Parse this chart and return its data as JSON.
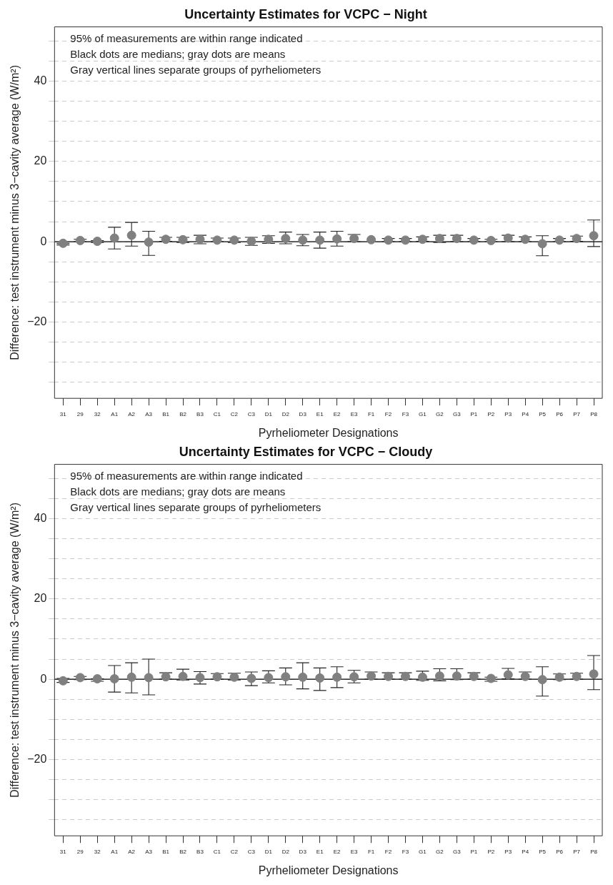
{
  "chart_data": [
    {
      "type": "scatter",
      "title": "Uncertainty Estimates for VCPC − Night",
      "xlabel": "Pyrheliometer Designations",
      "ylabel": "Difference: test instrument minus 3−cavity average (W/m²)",
      "annotations": [
        "95% of measurements are within range indicated",
        "Black dots are medians; gray dots are means",
        "Gray vertical lines separate groups of pyrheliometers"
      ],
      "categories": [
        "31",
        "29",
        "32",
        "A1",
        "A2",
        "A3",
        "B1",
        "B2",
        "B3",
        "C1",
        "C2",
        "C3",
        "D1",
        "D2",
        "D3",
        "E1",
        "E2",
        "E3",
        "F1",
        "F2",
        "F3",
        "G1",
        "G2",
        "G3",
        "P1",
        "P2",
        "P3",
        "P4",
        "P5",
        "P6",
        "P7",
        "P8"
      ],
      "ylim": [
        -39,
        53.5
      ],
      "yticks": [
        {
          "value": -35,
          "label": null
        },
        {
          "value": -30,
          "label": null
        },
        {
          "value": -25,
          "label": null
        },
        {
          "value": -20,
          "label": "−20"
        },
        {
          "value": -15,
          "label": null
        },
        {
          "value": -10,
          "label": null
        },
        {
          "value": -5,
          "label": null
        },
        0,
        {
          "value": 5,
          "label": null
        },
        {
          "value": 10,
          "label": null
        },
        {
          "value": 15,
          "label": null
        },
        20,
        {
          "value": 25,
          "label": null
        },
        {
          "value": 30,
          "label": null
        },
        {
          "value": 35,
          "label": null
        },
        40,
        {
          "value": 45,
          "label": null
        },
        {
          "value": 50,
          "label": null
        }
      ],
      "grid": "y",
      "marker": "circle",
      "series": [
        {
          "color": "#808080",
          "values": [
            -0.4,
            0.3,
            0.1,
            0.9,
            1.6,
            -0.1,
            0.6,
            0.5,
            0.6,
            0.4,
            0.4,
            0.1,
            0.6,
            0.8,
            0.4,
            0.4,
            0.7,
            0.8,
            0.5,
            0.4,
            0.4,
            0.6,
            0.8,
            0.8,
            0.4,
            0.3,
            0.9,
            0.6,
            -0.5,
            0.4,
            0.8,
            1.5
          ],
          "errors": [
            [
              -0.8,
              -0.4
            ],
            [
              0,
              0.6
            ],
            [
              -0.2,
              0.3
            ],
            [
              -1.8,
              3.6
            ],
            [
              -1.1,
              4.8
            ],
            [
              -3.4,
              2.6
            ],
            [
              0.1,
              1.1
            ],
            [
              -0.2,
              1.1
            ],
            [
              -0.5,
              1.6
            ],
            [
              0,
              0.9
            ],
            [
              -0.2,
              0.9
            ],
            [
              -0.9,
              1.1
            ],
            [
              -0.4,
              1.5
            ],
            [
              -0.5,
              2.4
            ],
            [
              -1,
              1.8
            ],
            [
              -1.6,
              2.4
            ],
            [
              -1.1,
              2.6
            ],
            [
              0,
              1.8
            ],
            null,
            [
              0,
              0.8
            ],
            [
              0,
              0.8
            ],
            [
              0.1,
              1.2
            ],
            [
              -0.2,
              1.6
            ],
            [
              0,
              1.6
            ],
            [
              0,
              0.8
            ],
            [
              0,
              0.6
            ],
            [
              0,
              1.6
            ],
            [
              0,
              1.2
            ],
            [
              -3.5,
              1.5
            ],
            [
              0,
              0.8
            ],
            [
              0.1,
              1.4
            ],
            [
              -1.2,
              5.4
            ]
          ]
        }
      ],
      "ref_lines": [
        {
          "axis": "y",
          "value": 0,
          "color": "#000000"
        }
      ]
    },
    {
      "type": "scatter",
      "title": "Uncertainty Estimates for VCPC − Cloudy",
      "xlabel": "Pyrheliometer Designations",
      "ylabel": "Difference: test instrument minus 3−cavity average (W/m²)",
      "annotations": [
        "95% of measurements are within range indicated",
        "Black dots are medians; gray dots are means",
        "Gray vertical lines separate groups of pyrheliometers"
      ],
      "categories": [
        "31",
        "29",
        "32",
        "A1",
        "A2",
        "A3",
        "B1",
        "B2",
        "B3",
        "C1",
        "C2",
        "C3",
        "D1",
        "D2",
        "D3",
        "E1",
        "E2",
        "E3",
        "F1",
        "F2",
        "F3",
        "G1",
        "G2",
        "G3",
        "P1",
        "P2",
        "P3",
        "P4",
        "P5",
        "P6",
        "P7",
        "P8"
      ],
      "ylim": [
        -39,
        53.5
      ],
      "yticks": [
        {
          "value": -35,
          "label": null
        },
        {
          "value": -30,
          "label": null
        },
        {
          "value": -25,
          "label": null
        },
        {
          "value": -20,
          "label": "−20"
        },
        {
          "value": -15,
          "label": null
        },
        {
          "value": -10,
          "label": null
        },
        {
          "value": -5,
          "label": null
        },
        0,
        {
          "value": 5,
          "label": null
        },
        {
          "value": 10,
          "label": null
        },
        {
          "value": 15,
          "label": null
        },
        20,
        {
          "value": 25,
          "label": null
        },
        {
          "value": 30,
          "label": null
        },
        {
          "value": 35,
          "label": null
        },
        40,
        {
          "value": 45,
          "label": null
        },
        {
          "value": 50,
          "label": null
        }
      ],
      "grid": "y",
      "marker": "circle",
      "series": [
        {
          "color": "#808080",
          "values": [
            -0.4,
            0.4,
            0.1,
            0.1,
            0.5,
            0.4,
            0.6,
            0.7,
            0.4,
            0.6,
            0.5,
            0.2,
            0.4,
            0.6,
            0.5,
            0.3,
            0.5,
            0.6,
            0.8,
            0.7,
            0.7,
            0.5,
            0.8,
            0.8,
            0.7,
            0.2,
            1.1,
            0.7,
            -0.1,
            0.5,
            0.7,
            1.3
          ],
          "errors": [
            [
              -0.8,
              0.2
            ],
            [
              -0.1,
              0.7
            ],
            [
              -0.5,
              0.1
            ],
            [
              -3.2,
              3.4
            ],
            [
              -3.4,
              4.1
            ],
            [
              -3.9,
              5
            ],
            [
              0,
              1.6
            ],
            [
              -0.2,
              2.5
            ],
            [
              -1.2,
              1.9
            ],
            [
              0,
              1.4
            ],
            [
              -0.2,
              1.5
            ],
            [
              -1.6,
              1.8
            ],
            [
              -0.9,
              2.1
            ],
            [
              -1.4,
              2.8
            ],
            [
              -2.4,
              4.1
            ],
            [
              -2.8,
              2.8
            ],
            [
              -2.1,
              3.1
            ],
            [
              -0.9,
              2.2
            ],
            [
              0,
              1.8
            ],
            [
              0,
              1.6
            ],
            [
              0,
              1.6
            ],
            [
              -0.3,
              2
            ],
            [
              -0.4,
              2.6
            ],
            [
              -0.1,
              2.6
            ],
            [
              0,
              1.6
            ],
            [
              -0.5,
              0.5
            ],
            [
              0.1,
              2.7
            ],
            [
              0,
              1.8
            ],
            [
              -4.2,
              3.1
            ],
            [
              -0.1,
              1.3
            ],
            [
              0,
              1.5
            ],
            [
              -2.6,
              5.9
            ]
          ]
        }
      ],
      "ref_lines": [
        {
          "axis": "y",
          "value": 0,
          "color": "#000000"
        }
      ]
    }
  ]
}
